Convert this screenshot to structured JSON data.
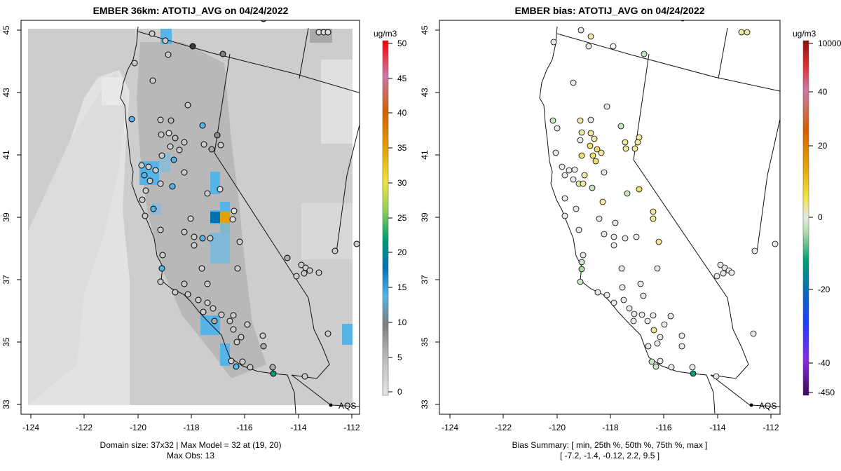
{
  "left": {
    "title": "EMBER 36km: ATOTIJ_AVG on 04/24/2022",
    "colorbar_unit": "ug/m3",
    "colorbar_ticks": [
      "50",
      "45",
      "40",
      "35",
      "30",
      "25",
      "20",
      "15",
      "10",
      "5",
      "0"
    ],
    "footer_line1": "Domain size: 37x32 | Max Model = 32 at (19, 20)",
    "footer_line2": "Max Obs: 13",
    "legend_label": "AQS"
  },
  "right": {
    "title": "EMBER bias: ATOTIJ_AVG on 04/24/2022",
    "colorbar_unit": "ug/m3",
    "colorbar_ticks": [
      "10000",
      "40",
      "20",
      "0",
      "-20",
      "-40",
      "-450"
    ],
    "footer_line1": "Bias Summary: [ min, 25th %, 50th %, 75th %, max ]",
    "footer_line2": "[ -7.2,  -1.4,  -0.12,  2.2,  9.5 ]",
    "legend_label": "AQS"
  },
  "axes": {
    "x_ticks": [
      "-124",
      "-122",
      "-120",
      "-118",
      "-116",
      "-114",
      "-112"
    ],
    "y_ticks": [
      "45",
      "43",
      "41",
      "39",
      "37",
      "35",
      "33"
    ]
  },
  "colors": {
    "model_base": "#cccccc",
    "ocean_model": "#e0e0e0",
    "blue_cell": "#56b4e9",
    "dark_blue_cell": "#0072b2",
    "orange_cell": "#e69f00",
    "green_cell": "#009e73",
    "frame": "#000000"
  }
}
